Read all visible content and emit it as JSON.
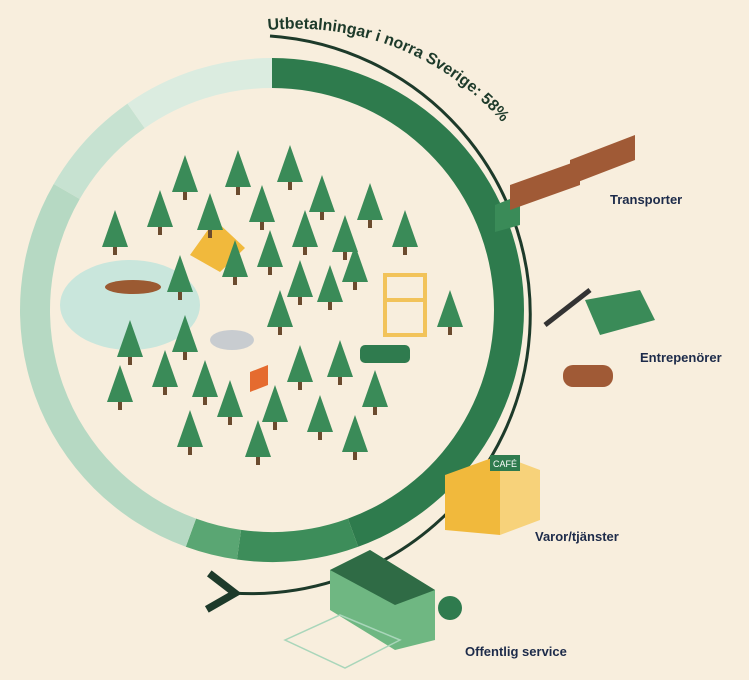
{
  "title": "Utbetalningar i norra Sverige: 58%",
  "labels": [
    "Transporter",
    "Entrepenörer",
    "Varor/tjänster",
    "Offentlig service"
  ],
  "sign": "CAFÉ"
}
